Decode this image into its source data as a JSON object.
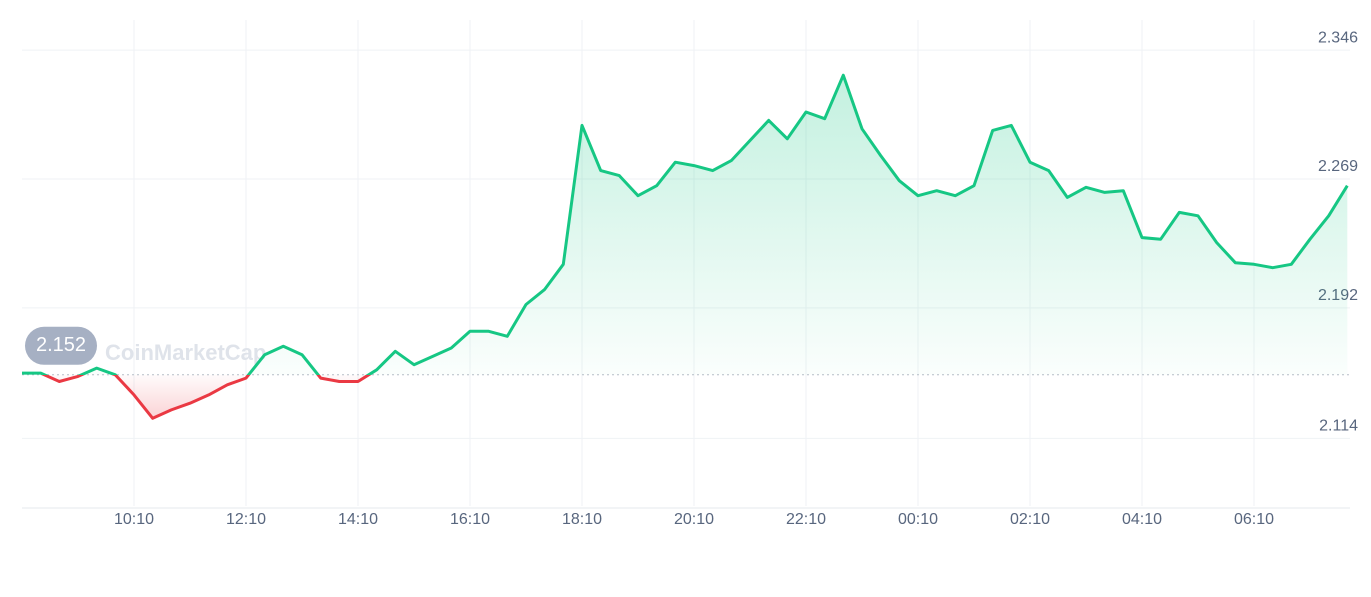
{
  "chart_data": {
    "type": "line",
    "watermark": "CoinMarketCap",
    "categories": [
      null,
      null,
      null,
      null,
      null,
      null,
      "10:10",
      null,
      null,
      null,
      null,
      null,
      "12:10",
      null,
      null,
      null,
      null,
      null,
      "14:10",
      null,
      null,
      null,
      null,
      null,
      "16:10",
      null,
      null,
      null,
      null,
      null,
      "18:10",
      null,
      null,
      null,
      null,
      null,
      "20:10",
      null,
      null,
      null,
      null,
      null,
      "22:10",
      null,
      null,
      null,
      null,
      null,
      "00:10",
      null,
      null,
      null,
      null,
      null,
      "02:10",
      null,
      null,
      null,
      null,
      null,
      "04:10",
      null,
      null,
      null,
      null,
      null,
      "06:10",
      null,
      null,
      null,
      null,
      null
    ],
    "values": [
      2.153,
      2.153,
      2.148,
      2.151,
      2.156,
      2.152,
      2.14,
      2.126,
      2.131,
      2.135,
      2.14,
      2.146,
      2.15,
      2.164,
      2.169,
      2.164,
      2.15,
      2.148,
      2.148,
      2.155,
      2.166,
      2.158,
      2.163,
      2.168,
      2.178,
      2.178,
      2.175,
      2.194,
      2.203,
      2.218,
      2.301,
      2.274,
      2.271,
      2.259,
      2.265,
      2.279,
      2.277,
      2.274,
      2.28,
      2.292,
      2.304,
      2.293,
      2.309,
      2.305,
      2.331,
      2.299,
      2.283,
      2.268,
      2.259,
      2.262,
      2.259,
      2.265,
      2.298,
      2.301,
      2.279,
      2.274,
      2.258,
      2.264,
      2.261,
      2.262,
      2.234,
      2.233,
      2.249,
      2.247,
      2.231,
      2.219,
      2.218,
      2.216,
      2.218,
      2.233,
      2.247,
      2.265
    ],
    "baseline": 2.152,
    "up_color": "#16c784",
    "down_color": "#ea3943",
    "ylim": [
      2.07,
      2.364
    ],
    "yticks": [
      2.114,
      2.192,
      2.269,
      2.346
    ],
    "grid": true
  }
}
